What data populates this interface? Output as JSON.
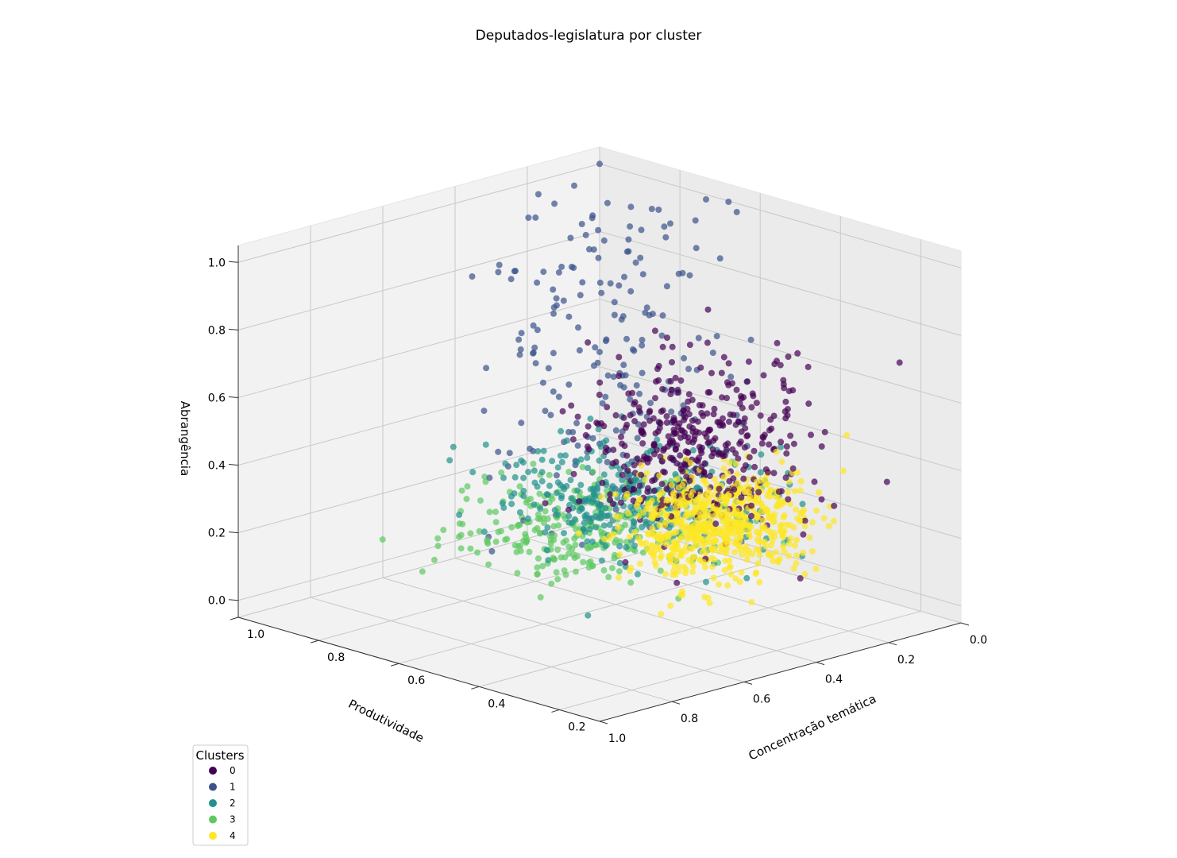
{
  "chart_data": {
    "type": "scatter",
    "projection": "3d",
    "title": "Deputados-legislatura por cluster",
    "xlabel": "Produtividade",
    "ylabel": "Concentração temática",
    "zlabel": "Abrangência",
    "xlim": [
      0.0,
      1.0
    ],
    "ylim": [
      0.1,
      1.0
    ],
    "zlim": [
      -0.05,
      1.05
    ],
    "x_ticks": [
      "0.0",
      "0.2",
      "0.4",
      "0.6",
      "0.8",
      "1.0"
    ],
    "y_ticks": [
      "0.2",
      "0.4",
      "0.6",
      "0.8",
      "1.0"
    ],
    "z_ticks": [
      "0.0",
      "0.2",
      "0.4",
      "0.6",
      "0.8",
      "1.0"
    ],
    "grid": true,
    "colormap": "viridis",
    "legend": {
      "title": "Clusters",
      "placement": "lower-left",
      "entries": [
        {
          "label": "0",
          "color": "#440154"
        },
        {
          "label": "1",
          "color": "#3b528b"
        },
        {
          "label": "2",
          "color": "#21918c"
        },
        {
          "label": "3",
          "color": "#5ec962"
        },
        {
          "label": "4",
          "color": "#fde725"
        }
      ]
    },
    "series": [
      {
        "name": "0",
        "color": "#440154",
        "count": 420,
        "center": [
          0.42,
          0.38,
          0.5
        ],
        "spread": [
          0.12,
          0.09,
          0.12
        ]
      },
      {
        "name": "1",
        "color": "#3b528b",
        "count": 200,
        "center": [
          0.15,
          0.85,
          0.5
        ],
        "spread": [
          0.12,
          0.12,
          0.3
        ]
      },
      {
        "name": "2",
        "color": "#21918c",
        "count": 320,
        "center": [
          0.38,
          0.58,
          0.26
        ],
        "spread": [
          0.12,
          0.12,
          0.07
        ]
      },
      {
        "name": "3",
        "color": "#5ec962",
        "count": 280,
        "center": [
          0.3,
          0.78,
          0.08
        ],
        "spread": [
          0.15,
          0.12,
          0.06
        ]
      },
      {
        "name": "4",
        "color": "#fde725",
        "count": 650,
        "center": [
          0.48,
          0.28,
          0.32
        ],
        "spread": [
          0.1,
          0.07,
          0.07
        ]
      }
    ]
  }
}
